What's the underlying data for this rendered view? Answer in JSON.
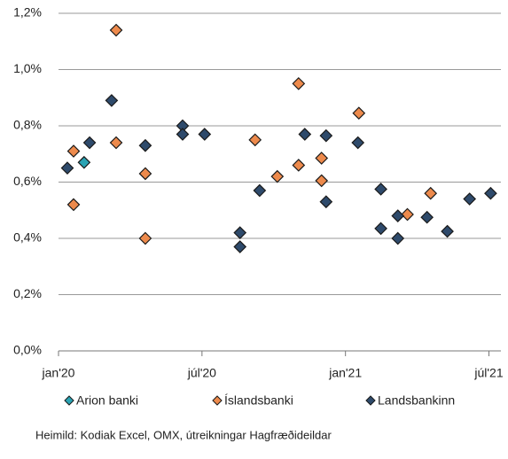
{
  "chart_data": {
    "type": "scatter",
    "xlim": [
      0,
      18.5
    ],
    "xticks": [
      {
        "value": 0,
        "label": "jan'20"
      },
      {
        "value": 6,
        "label": "júl'20"
      },
      {
        "value": 12,
        "label": "jan'21"
      },
      {
        "value": 18,
        "label": "júl'21"
      }
    ],
    "ylim": [
      0,
      1.2
    ],
    "yticks": [
      {
        "value": 0,
        "label": "0,0%"
      },
      {
        "value": 0.2,
        "label": "0,2%"
      },
      {
        "value": 0.4,
        "label": "0,4%"
      },
      {
        "value": 0.6,
        "label": "0,6%"
      },
      {
        "value": 0.8,
        "label": "0,8%"
      },
      {
        "value": 1.0,
        "label": "1,0%"
      },
      {
        "value": 1.2,
        "label": "1,2%"
      }
    ],
    "grid": true,
    "legend": "bottom",
    "series": [
      {
        "name": "Arion banki",
        "color": "#2aa3b3",
        "x": [
          1.07
        ],
        "values": [
          0.67
        ]
      },
      {
        "name": "Íslandsbanki",
        "color": "#ed8a4c",
        "x": [
          0.63,
          0.63,
          2.41,
          2.41,
          3.63,
          3.63,
          8.22,
          9.15,
          10.04,
          10.04,
          11.0,
          11.0,
          12.56,
          14.59,
          15.56
        ],
        "values": [
          0.71,
          0.52,
          1.14,
          0.74,
          0.63,
          0.4,
          0.75,
          0.62,
          0.95,
          0.66,
          0.685,
          0.605,
          0.845,
          0.485,
          0.56
        ]
      },
      {
        "name": "Landsbankinn",
        "color": "#2e4a6b",
        "x": [
          0.37,
          1.3,
          2.22,
          3.63,
          5.19,
          5.19,
          6.11,
          7.59,
          7.59,
          8.41,
          10.3,
          11.19,
          11.19,
          12.52,
          13.48,
          13.48,
          14.19,
          14.19,
          15.41,
          16.26,
          17.19,
          18.07
        ],
        "values": [
          0.65,
          0.74,
          0.89,
          0.73,
          0.8,
          0.77,
          0.77,
          0.42,
          0.37,
          0.57,
          0.77,
          0.765,
          0.53,
          0.74,
          0.575,
          0.435,
          0.4,
          0.48,
          0.475,
          0.425,
          0.54,
          0.56
        ]
      }
    ],
    "source": "Heimild: Kodiak Excel, OMX, útreikningar Hagfræðideildar"
  }
}
